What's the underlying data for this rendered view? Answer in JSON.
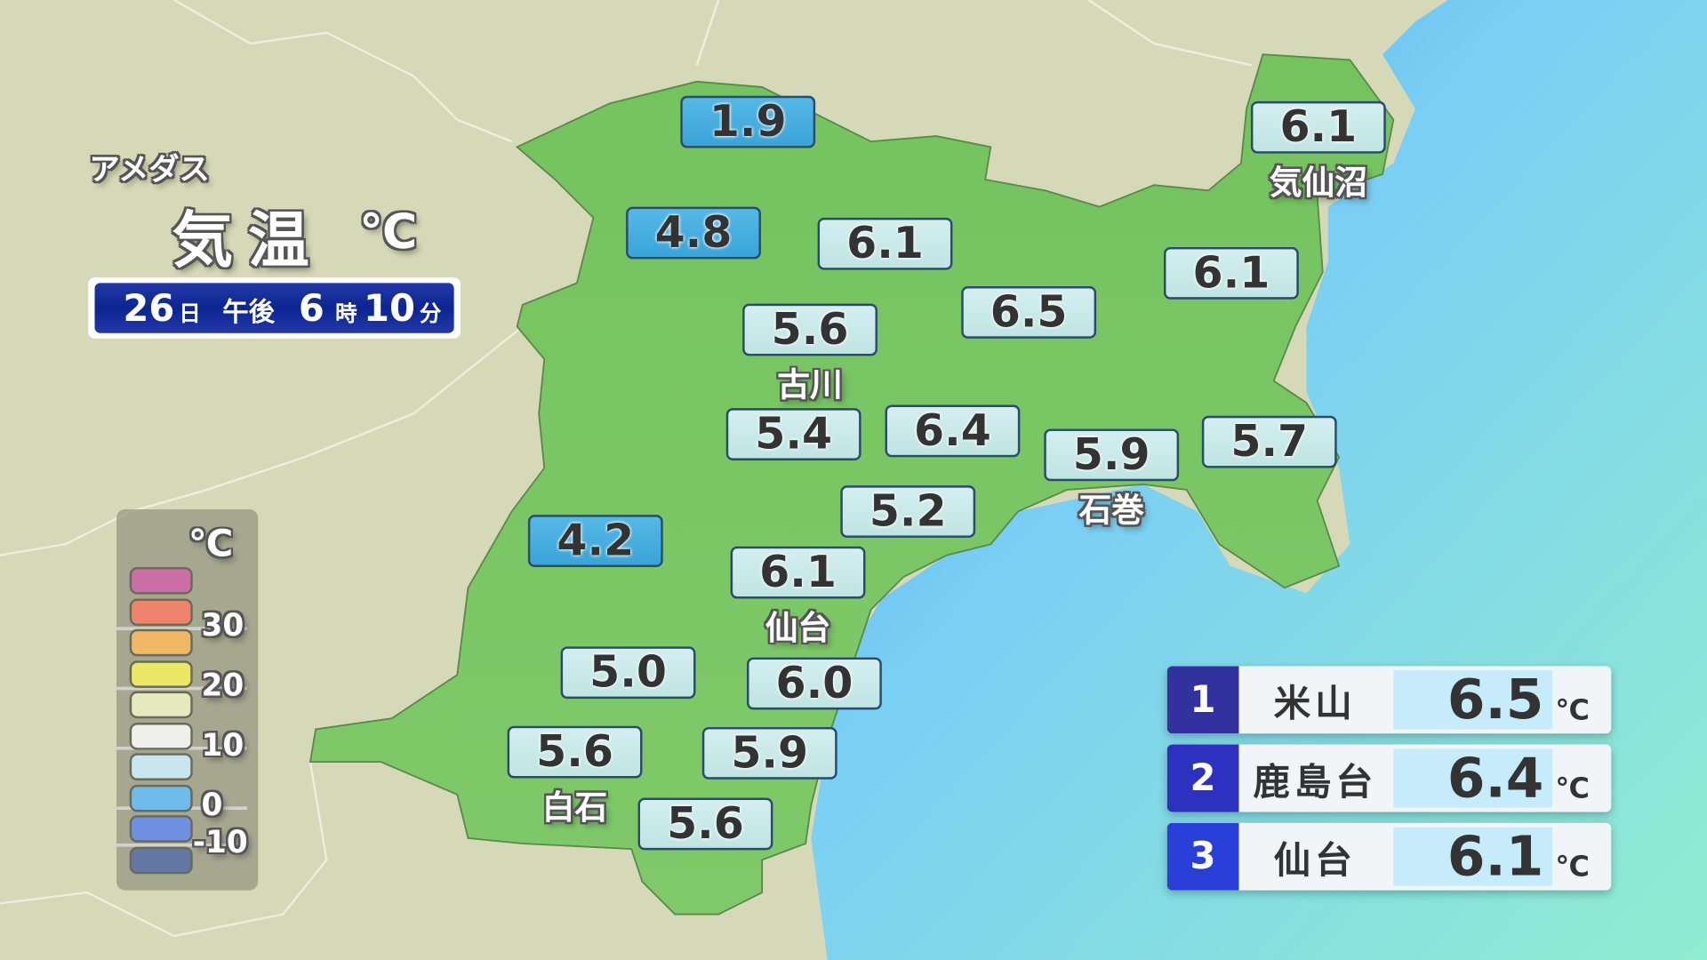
{
  "header": {
    "subtitle": "アメダス",
    "title": "気温",
    "unit": "℃"
  },
  "datetime": {
    "day": "26",
    "day_unit": "日",
    "ampm": "午後",
    "hour": "6",
    "hour_unit": "時",
    "minute": "10",
    "minute_unit": "分"
  },
  "colors": {
    "land": "#7cc766",
    "sea": "#79cff4",
    "background": "#d6d9b7",
    "cold_box": "#45aee0",
    "normal_box": "#c8e9e8"
  },
  "stations": [
    {
      "value": "1.9",
      "cold": true
    },
    {
      "value": "4.8",
      "cold": true
    },
    {
      "value": "6.1"
    },
    {
      "value": "6.1",
      "name": "気仙沼"
    },
    {
      "value": "6.1"
    },
    {
      "value": "5.6",
      "name": "古川"
    },
    {
      "value": "6.5"
    },
    {
      "value": "5.4"
    },
    {
      "value": "6.4"
    },
    {
      "value": "5.9",
      "name": "石巻"
    },
    {
      "value": "5.7"
    },
    {
      "value": "5.2"
    },
    {
      "value": "4.2",
      "cold": true
    },
    {
      "value": "6.1",
      "name": "仙台"
    },
    {
      "value": "5.0"
    },
    {
      "value": "6.0"
    },
    {
      "value": "5.6",
      "name": "白石"
    },
    {
      "value": "5.9"
    },
    {
      "value": "5.6"
    }
  ],
  "legend": {
    "unit": "℃",
    "ticks": [
      "30",
      "20",
      "10",
      "0",
      "-10"
    ],
    "colors": [
      "#cc6fa6",
      "#ee846c",
      "#f0b866",
      "#ebe867",
      "#e4eabd",
      "#f0f0ea",
      "#c8e6ef",
      "#6fbbe9",
      "#6f8fe0",
      "#6478a6"
    ]
  },
  "ranking": [
    {
      "rank": "1",
      "name": "米山",
      "value": "6.5",
      "unit": "℃",
      "color": "#33309f"
    },
    {
      "rank": "2",
      "name": "鹿島台",
      "value": "6.4",
      "unit": "℃",
      "color": "#2c31c0"
    },
    {
      "rank": "3",
      "name": "仙台",
      "value": "6.1",
      "unit": "℃",
      "color": "#2a3ed8"
    }
  ]
}
